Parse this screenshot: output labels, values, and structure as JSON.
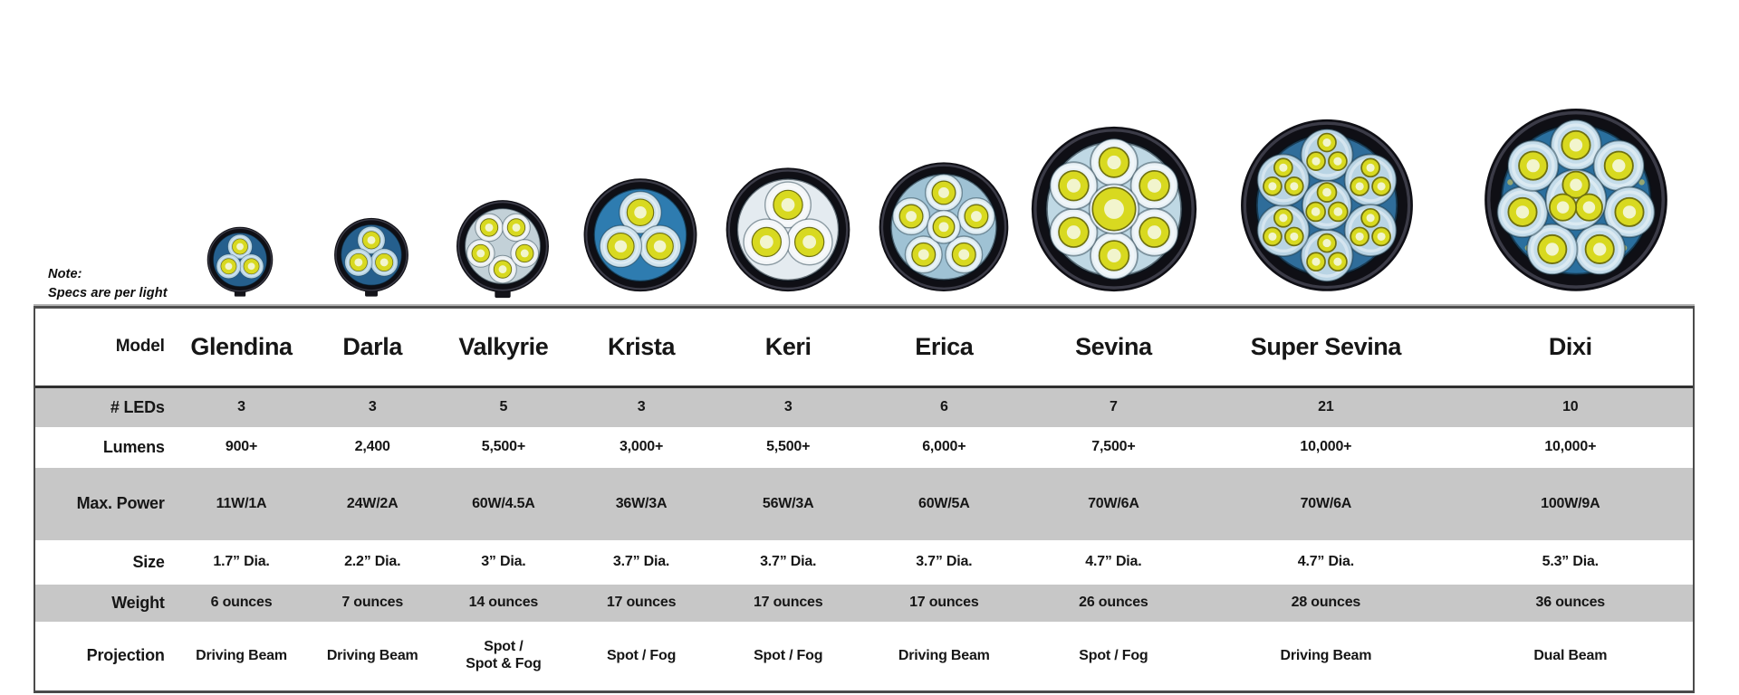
{
  "note": {
    "line1": "Note:",
    "line2": "Specs are per light"
  },
  "models": [
    "Glendina",
    "Darla",
    "Valkyrie",
    "Krista",
    "Keri",
    "Erica",
    "Sevina",
    "Super Sevina",
    "Dixi"
  ],
  "table": {
    "model_row_label": "Model",
    "rows": [
      {
        "label": "# LEDs",
        "shaded": true,
        "values": [
          "3",
          "3",
          "5",
          "3",
          "3",
          "6",
          "7",
          "21",
          "10"
        ]
      },
      {
        "label": "Lumens",
        "shaded": false,
        "values": [
          "900+",
          "2,400",
          "5,500+",
          "3,000+",
          "5,500+",
          "6,000+",
          "7,500+",
          "10,000+",
          "10,000+"
        ]
      },
      {
        "label": "Max. Power",
        "shaded": true,
        "values": [
          "11W/1A",
          "24W/2A",
          "60W/4.5A",
          "36W/3A",
          "56W/3A",
          "60W/5A",
          "70W/6A",
          "70W/6A",
          "100W/9A"
        ]
      },
      {
        "label": "Size",
        "shaded": false,
        "values": [
          "1.7” Dia.",
          "2.2” Dia.",
          "3” Dia.",
          "3.7” Dia.",
          "3.7” Dia.",
          "3.7” Dia.",
          "4.7” Dia.",
          "4.7” Dia.",
          "5.3” Dia."
        ]
      },
      {
        "label": "Weight",
        "shaded": true,
        "values": [
          "6 ounces",
          "7 ounces",
          "14 ounces",
          "17 ounces",
          "17 ounces",
          "17 ounces",
          "26 ounces",
          "28 ounces",
          "36 ounces"
        ]
      },
      {
        "label": "Projection",
        "shaded": false,
        "values": [
          "Driving Beam",
          "Driving Beam",
          "Spot /\nSpot & Fog",
          "Spot / Fog",
          "Spot / Fog",
          "Driving Beam",
          "Spot / Fog",
          "Driving Beam",
          "Dual Beam"
        ]
      }
    ]
  },
  "lights": {
    "icon_names": [
      "glendina-light-image",
      "darla-light-image",
      "valkyrie-light-image",
      "krista-light-image",
      "keri-light-image",
      "erica-light-image",
      "sevina-light-image",
      "super-sevina-light-image",
      "dixi-light-image"
    ],
    "led_counts": [
      3,
      3,
      5,
      3,
      3,
      6,
      7,
      21,
      10
    ]
  },
  "colors": {
    "row_shade": "#c7c7c7",
    "table_border": "#4b4b4b",
    "header_underline": "#2f2f2f",
    "text": "#161616",
    "led_yellow": "#d8d920",
    "led_core": "#f2f5cd",
    "lens_blue_dark": "#2c6f9d",
    "lens_blue_bright": "#2e7cb0",
    "lens_silver": "#cad7dd",
    "lens_white": "#e4ebf0",
    "bezel_black": "#0f0f15"
  },
  "chart_data": {
    "type": "table",
    "title": "LED auxiliary light comparison (specs are per light)",
    "columns": [
      "Model",
      "Glendina",
      "Darla",
      "Valkyrie",
      "Krista",
      "Keri",
      "Erica",
      "Sevina",
      "Super Sevina",
      "Dixi"
    ],
    "rows": [
      [
        "# LEDs",
        "3",
        "3",
        "5",
        "3",
        "3",
        "6",
        "7",
        "21",
        "10"
      ],
      [
        "Lumens",
        "900+",
        "2,400",
        "5,500+",
        "3,000+",
        "5,500+",
        "6,000+",
        "7,500+",
        "10,000+",
        "10,000+"
      ],
      [
        "Max. Power",
        "11W/1A",
        "24W/2A",
        "60W/4.5A",
        "36W/3A",
        "56W/3A",
        "60W/5A",
        "70W/6A",
        "70W/6A",
        "100W/9A"
      ],
      [
        "Size",
        "1.7” Dia.",
        "2.2” Dia.",
        "3” Dia.",
        "3.7” Dia.",
        "3.7” Dia.",
        "3.7” Dia.",
        "4.7” Dia.",
        "4.7” Dia.",
        "5.3” Dia."
      ],
      [
        "Weight",
        "6 ounces",
        "7 ounces",
        "14 ounces",
        "17 ounces",
        "17 ounces",
        "17 ounces",
        "26 ounces",
        "28 ounces",
        "36 ounces"
      ],
      [
        "Projection",
        "Driving Beam",
        "Driving Beam",
        "Spot / Spot & Fog",
        "Spot / Fog",
        "Spot / Fog",
        "Driving Beam",
        "Spot / Fog",
        "Driving Beam",
        "Dual Beam"
      ]
    ]
  }
}
